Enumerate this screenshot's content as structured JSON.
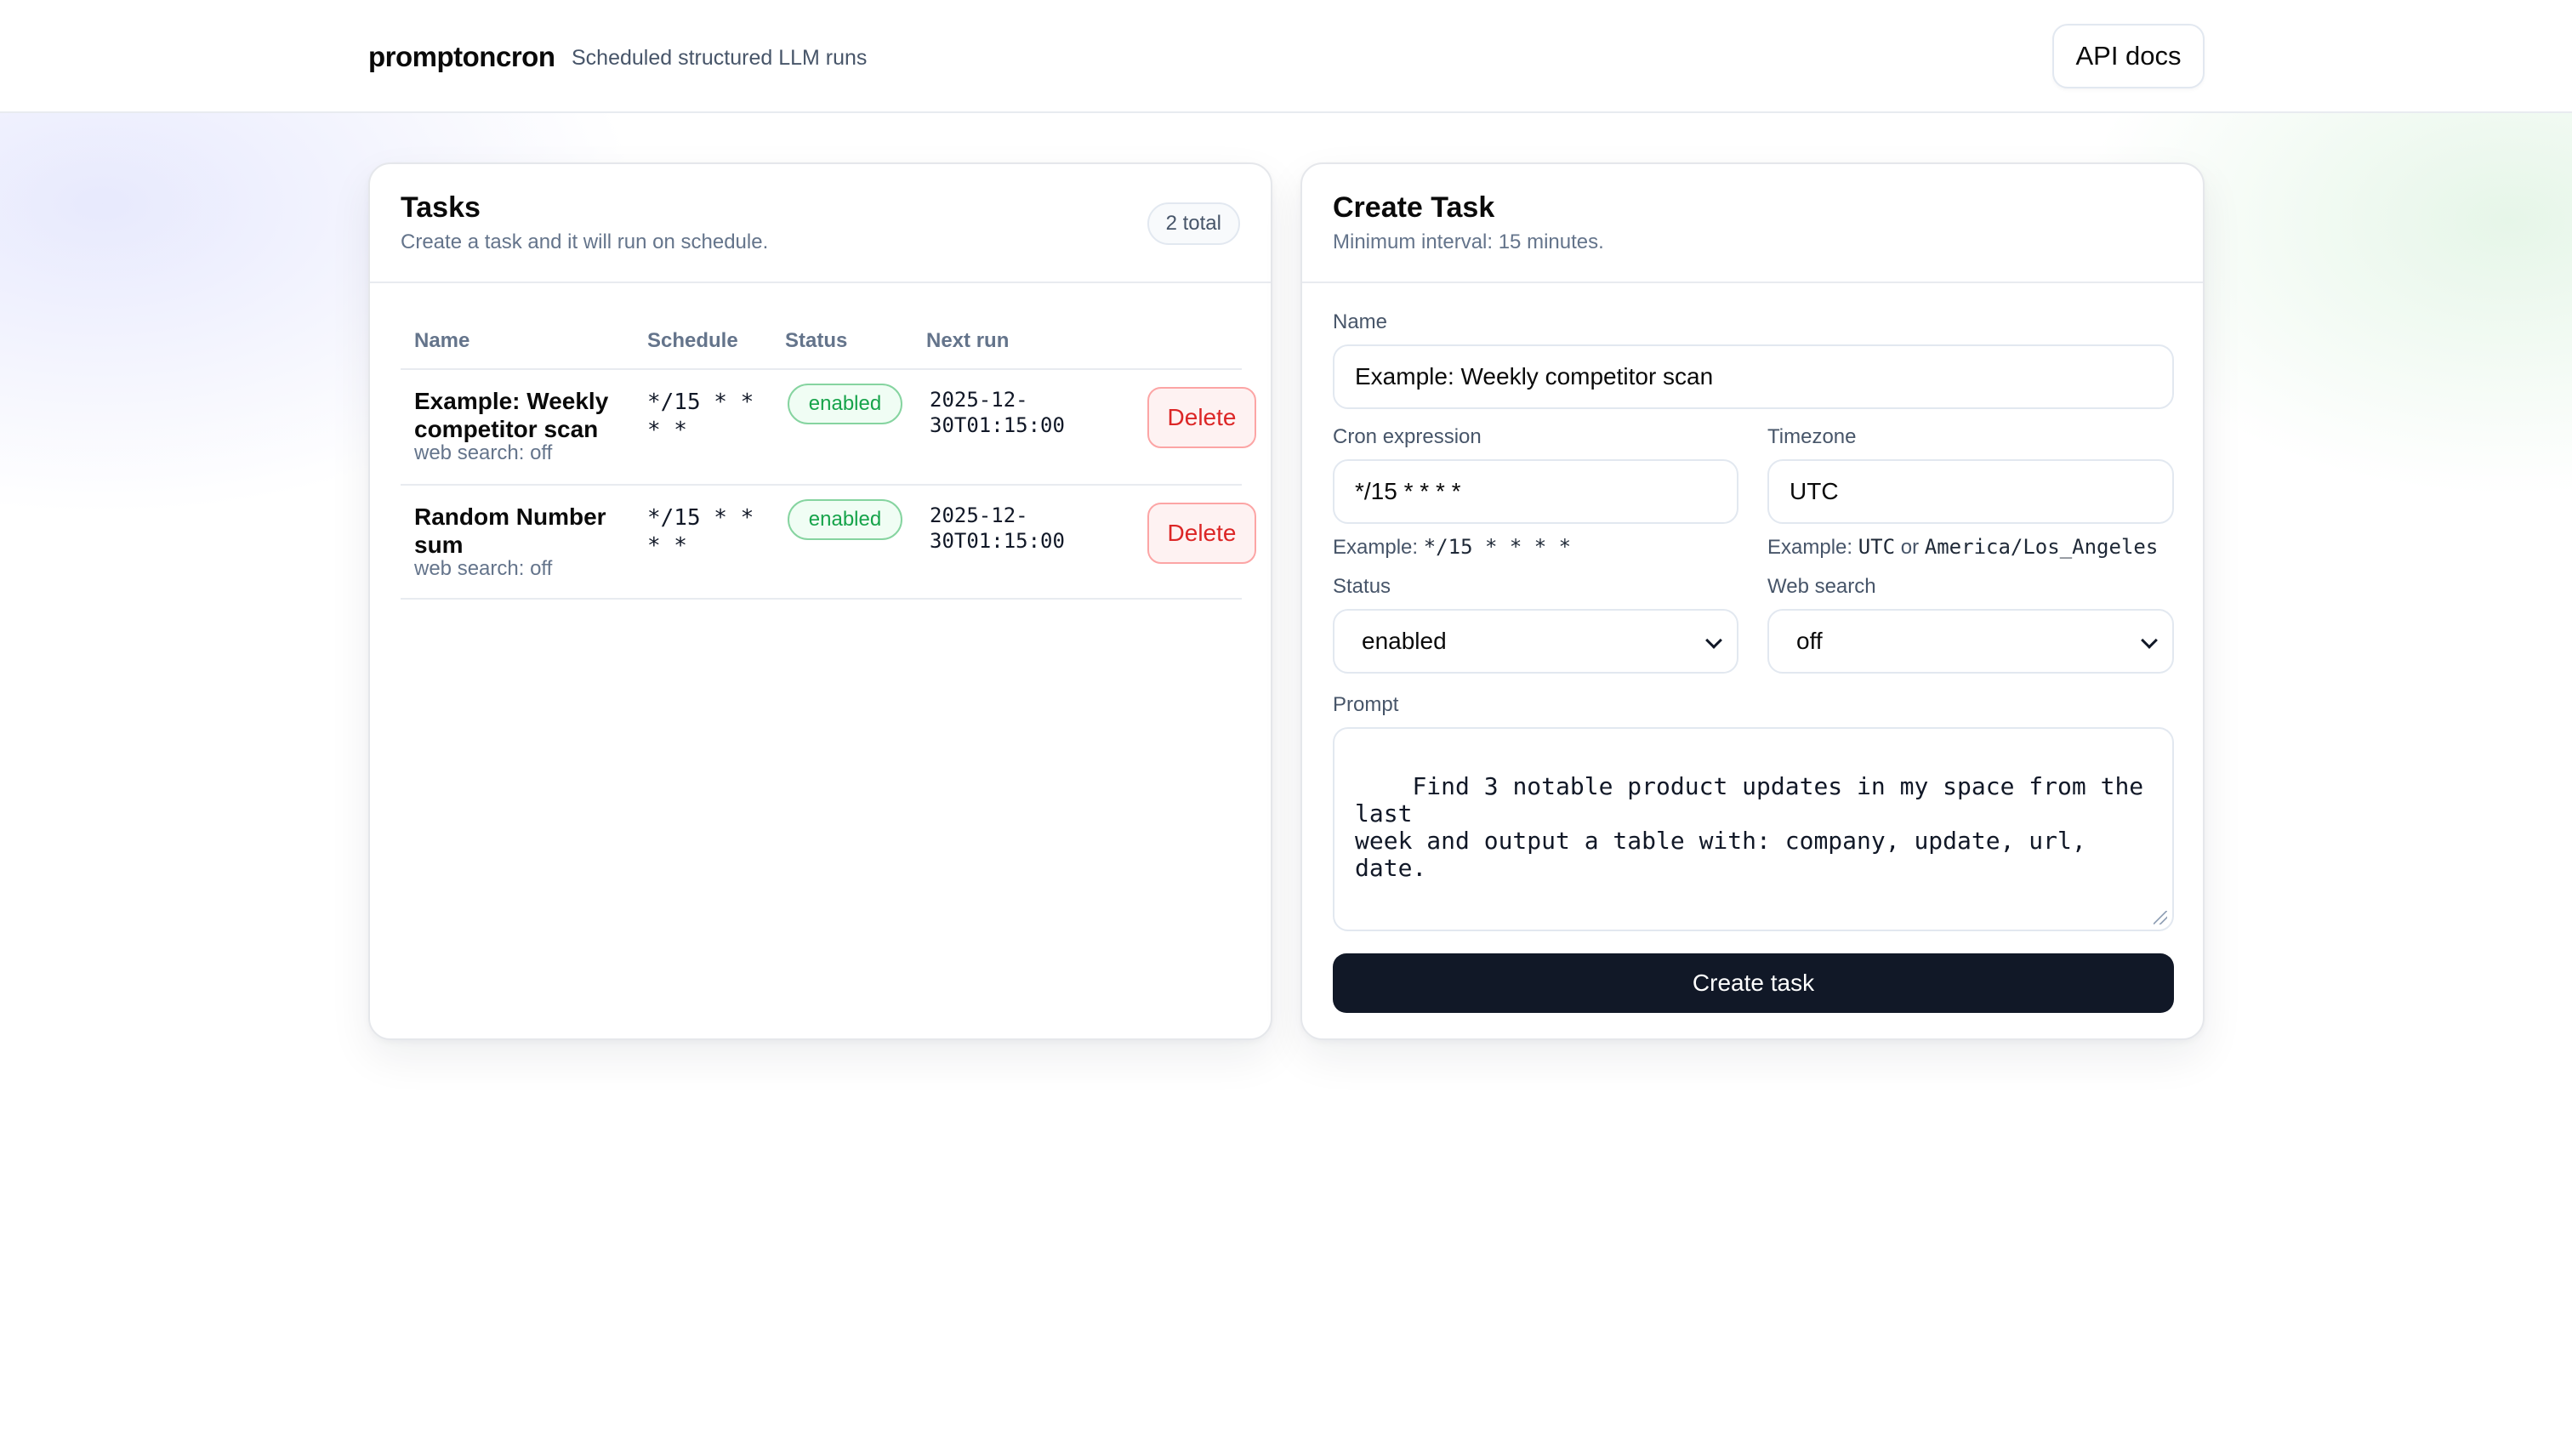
{
  "header": {
    "brand": "promptoncron",
    "tagline": "Scheduled structured LLM runs",
    "api_docs_label": "API docs"
  },
  "tasks_panel": {
    "title": "Tasks",
    "subtitle": "Create a task and it will run on schedule.",
    "total_badge": "2 total",
    "columns": [
      "Name",
      "Schedule",
      "Status",
      "Next run"
    ],
    "rows": [
      {
        "name": "Example: Weekly competitor scan",
        "meta": "web search: off",
        "schedule": "*/15 * * * *",
        "status": "enabled",
        "next_run": "2025-12-30T01:15:00",
        "delete_label": "Delete"
      },
      {
        "name": "Random Number sum",
        "meta": "web search: off",
        "schedule": "*/15 * * * *",
        "status": "enabled",
        "next_run": "2025-12-30T01:15:00",
        "delete_label": "Delete"
      }
    ]
  },
  "create_panel": {
    "title": "Create Task",
    "subtitle": "Minimum interval: 15 minutes.",
    "name_label": "Name",
    "name_value": "Example: Weekly competitor scan",
    "cron_label": "Cron expression",
    "cron_value": "*/15 * * * *",
    "cron_hint_prefix": "Example:",
    "cron_hint_code": "*/15 * * * *",
    "timezone_label": "Timezone",
    "timezone_value": "UTC",
    "timezone_hint_prefix": "Example:",
    "timezone_hint_code1": "UTC",
    "timezone_hint_or": "or",
    "timezone_hint_code2": "America/Los_Angeles",
    "status_label": "Status",
    "status_value": "enabled",
    "web_search_label": "Web search",
    "web_search_value": "off",
    "prompt_label": "Prompt",
    "prompt_value": "Find 3 notable product updates in my space from the last\nweek and output a table with: company, update, url, date.",
    "create_button": "Create task"
  },
  "colors": {
    "primary_button": "#111827",
    "enabled_badge": "#16a34a",
    "delete_button": "#dc2626"
  }
}
